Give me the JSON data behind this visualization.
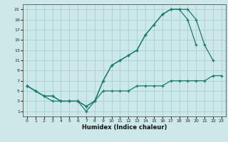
{
  "title": "",
  "xlabel": "Humidex (Indice chaleur)",
  "bg_color": "#cce8e8",
  "line_color": "#1a7a6e",
  "grid_color": "#aacece",
  "xlim": [
    -0.5,
    23.5
  ],
  "ylim": [
    0,
    22
  ],
  "xticks": [
    0,
    1,
    2,
    3,
    4,
    5,
    6,
    7,
    8,
    9,
    10,
    11,
    12,
    13,
    14,
    15,
    16,
    17,
    18,
    19,
    20,
    21,
    22,
    23
  ],
  "yticks": [
    1,
    3,
    5,
    7,
    9,
    11,
    13,
    15,
    17,
    19,
    21
  ],
  "line1_x": [
    0,
    1,
    2,
    3,
    4,
    5,
    6,
    7,
    8,
    9,
    10,
    11,
    12,
    13,
    14,
    15,
    16,
    17,
    18,
    19,
    20,
    21,
    22
  ],
  "line1_y": [
    6,
    5,
    4,
    4,
    3,
    3,
    3,
    1,
    3,
    7,
    10,
    11,
    12,
    13,
    16,
    18,
    20,
    21,
    21,
    21,
    19,
    14,
    11
  ],
  "line2_x": [
    0,
    1,
    2,
    3,
    4,
    5,
    6,
    7,
    8,
    9,
    10,
    11,
    12,
    13,
    14,
    15,
    16,
    17,
    18,
    19,
    20
  ],
  "line2_y": [
    6,
    5,
    4,
    4,
    3,
    3,
    3,
    2,
    3,
    7,
    10,
    11,
    12,
    13,
    16,
    18,
    20,
    21,
    21,
    19,
    14
  ],
  "line3_x": [
    0,
    1,
    2,
    3,
    4,
    5,
    6,
    7,
    8,
    9,
    10,
    11,
    12,
    13,
    14,
    15,
    16,
    17,
    18,
    19,
    20,
    21,
    22,
    23
  ],
  "line3_y": [
    6,
    5,
    4,
    3,
    3,
    3,
    3,
    2,
    3,
    5,
    5,
    5,
    5,
    6,
    6,
    6,
    6,
    7,
    7,
    7,
    7,
    7,
    8,
    8
  ]
}
